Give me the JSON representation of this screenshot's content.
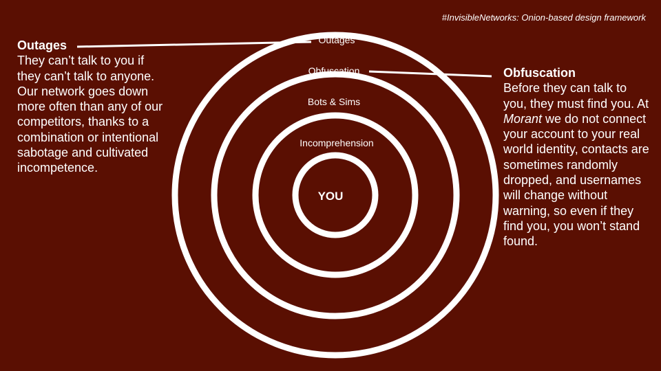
{
  "tag": "#InvisibleNetworks: Onion-based design framework",
  "rings": [
    {
      "label": "Outages"
    },
    {
      "label": "Obfuscation"
    },
    {
      "label": "Bots & Sims"
    },
    {
      "label": "Incomprehension"
    }
  ],
  "center": "YOU",
  "left": {
    "title": "Outages",
    "body": "They can’t talk to you if they can’t talk to anyone. Our network goes down more often than any of our competitors, thanks to a combination or intentional sabotage and cultivated incompetence."
  },
  "right": {
    "title": "Obfuscation",
    "body_before": "Before they can talk to you, they must find you. At ",
    "emphasis": "Morant",
    "body_after": " we do not connect your account to your real world identity, contacts are sometimes randomly dropped, and usernames will change without warning, so even if they find you, you won’t stand found."
  },
  "colors": {
    "background": "#5a0f02",
    "foreground": "#ffffff"
  }
}
